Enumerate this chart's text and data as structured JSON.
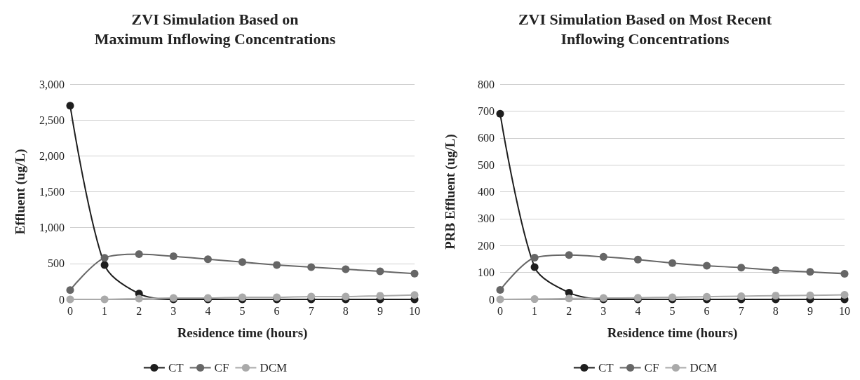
{
  "chart_data": [
    {
      "type": "line",
      "title": "ZVI Simulation Based on\nMaximum Inflowing Concentrations",
      "xlabel": "Residence time (hours)",
      "ylabel": "Effluent (ug/L)",
      "categories": [
        "0",
        "1",
        "2",
        "3",
        "4",
        "5",
        "6",
        "7",
        "8",
        "9",
        "10"
      ],
      "series": [
        {
          "name": "CT",
          "color": "#1e1e1e",
          "values": [
            2700,
            480,
            80,
            0,
            0,
            0,
            0,
            0,
            0,
            0,
            0
          ]
        },
        {
          "name": "CF",
          "color": "#666666",
          "values": [
            130,
            580,
            630,
            600,
            560,
            520,
            480,
            450,
            420,
            390,
            360
          ]
        },
        {
          "name": "DCM",
          "color": "#aaaaaa",
          "values": [
            0,
            0,
            10,
            20,
            20,
            30,
            30,
            40,
            40,
            50,
            60
          ]
        }
      ],
      "ylim": [
        0,
        3000
      ],
      "yticks": [
        {
          "value": 0,
          "label": "0"
        },
        {
          "value": 500,
          "label": "500"
        },
        {
          "value": 1000,
          "label": "1,000"
        },
        {
          "value": 1500,
          "label": "1,500"
        },
        {
          "value": 2000,
          "label": "2,000"
        },
        {
          "value": 2500,
          "label": "2,500"
        },
        {
          "value": 3000,
          "label": "3,000"
        }
      ],
      "grid": "y",
      "legend": "bottom",
      "marker": "circle",
      "line_style": "solid"
    },
    {
      "type": "line",
      "title": "ZVI Simulation Based on Most Recent\nInflowing Concentrations",
      "xlabel": "Residence time (hours)",
      "ylabel": "PRB Effluent (ug/L)",
      "categories": [
        "0",
        "1",
        "2",
        "3",
        "4",
        "5",
        "6",
        "7",
        "8",
        "9",
        "10"
      ],
      "series": [
        {
          "name": "CT",
          "color": "#1e1e1e",
          "values": [
            690,
            120,
            25,
            0,
            0,
            0,
            0,
            0,
            0,
            0,
            0
          ]
        },
        {
          "name": "CF",
          "color": "#666666",
          "values": [
            35,
            155,
            165,
            158,
            148,
            135,
            125,
            118,
            108,
            102,
            95
          ]
        },
        {
          "name": "DCM",
          "color": "#aaaaaa",
          "values": [
            0,
            1,
            3,
            5,
            6,
            8,
            10,
            12,
            14,
            15,
            17
          ]
        }
      ],
      "ylim": [
        0,
        800
      ],
      "yticks": [
        0,
        100,
        200,
        300,
        400,
        500,
        600,
        700,
        800
      ],
      "grid": "y",
      "legend": "bottom",
      "marker": "circle",
      "line_style": "solid"
    }
  ]
}
